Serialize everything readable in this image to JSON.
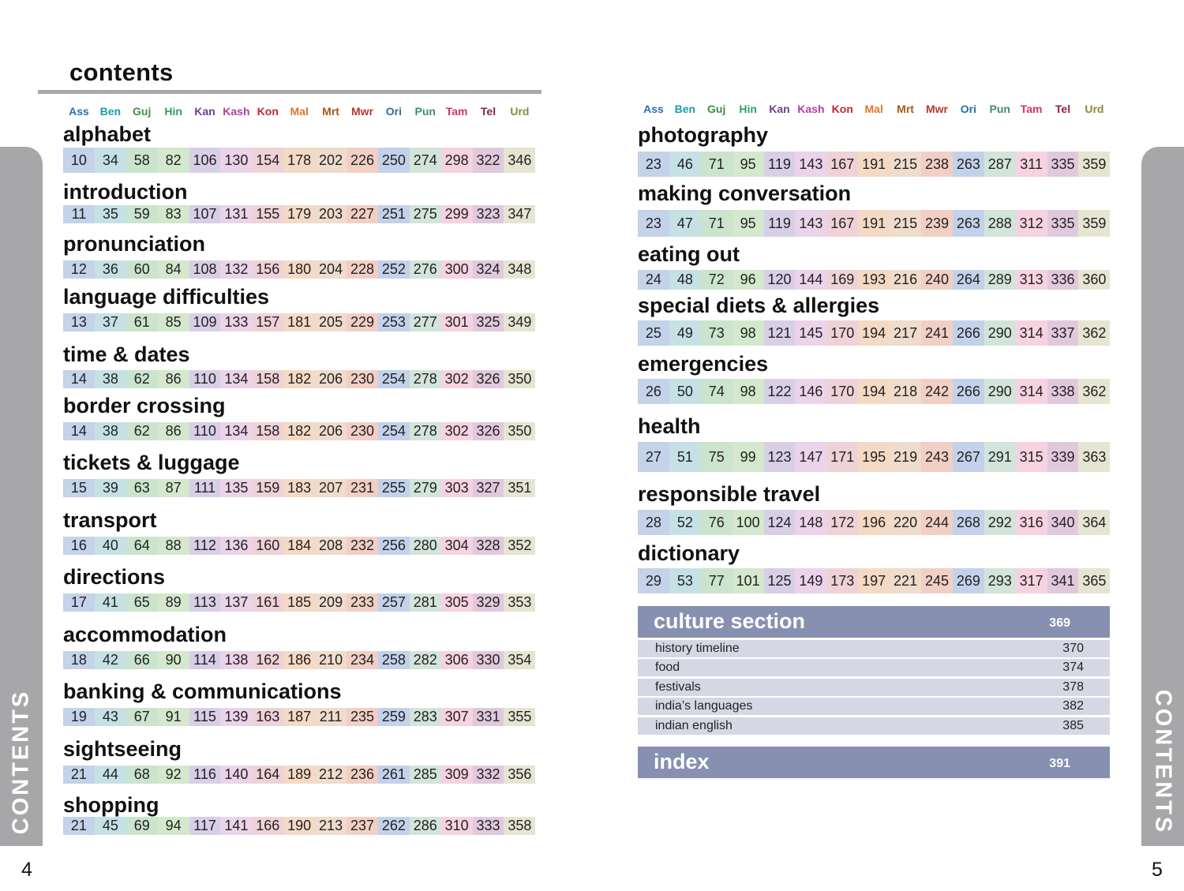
{
  "title": "contents",
  "side_label": "CONTENTS",
  "page_left": "4",
  "page_right": "5",
  "languages": [
    {
      "abbr": "Ass",
      "color": "#2c6fb4"
    },
    {
      "abbr": "Ben",
      "color": "#1a9fa5"
    },
    {
      "abbr": "Guj",
      "color": "#3e8f3e"
    },
    {
      "abbr": "Hin",
      "color": "#2aa15b"
    },
    {
      "abbr": "Kan",
      "color": "#6e3e8f"
    },
    {
      "abbr": "Kash",
      "color": "#b23fa6"
    },
    {
      "abbr": "Kon",
      "color": "#c0262f"
    },
    {
      "abbr": "Mal",
      "color": "#e0772b"
    },
    {
      "abbr": "Mrt",
      "color": "#a25a1c"
    },
    {
      "abbr": "Mwr",
      "color": "#b33a2c"
    },
    {
      "abbr": "Ori",
      "color": "#2a6fa5"
    },
    {
      "abbr": "Pun",
      "color": "#3e8f6e"
    },
    {
      "abbr": "Tam",
      "color": "#d6306f"
    },
    {
      "abbr": "Tel",
      "color": "#8d1f4e"
    },
    {
      "abbr": "Urd",
      "color": "#8a8a3e"
    }
  ],
  "cell_colors": [
    "#c4d2ea",
    "#c6e1e5",
    "#cbe4cd",
    "#d4e8cd",
    "#d8cfe7",
    "#ebd3ea",
    "#efd2d7",
    "#f4dac5",
    "#efdccd",
    "#f2cfc4",
    "#c3d2ea",
    "#d3e4db",
    "#f7d2e0",
    "#e1c9dd",
    "#e6e5d2"
  ],
  "left_sections": [
    {
      "title": "alphabet",
      "pages": [
        "10",
        "34",
        "58",
        "82",
        "106",
        "130",
        "154",
        "178",
        "202",
        "226",
        "250",
        "274",
        "298",
        "322",
        "346"
      ]
    },
    {
      "title": "introduction",
      "pages": [
        "11",
        "35",
        "59",
        "83",
        "107",
        "131",
        "155",
        "179",
        "203",
        "227",
        "251",
        "275",
        "299",
        "323",
        "347"
      ]
    },
    {
      "title": "pronunciation",
      "pages": [
        "12",
        "36",
        "60",
        "84",
        "108",
        "132",
        "156",
        "180",
        "204",
        "228",
        "252",
        "276",
        "300",
        "324",
        "348"
      ]
    },
    {
      "title": "language difficulties",
      "pages": [
        "13",
        "37",
        "61",
        "85",
        "109",
        "133",
        "157",
        "181",
        "205",
        "229",
        "253",
        "277",
        "301",
        "325",
        "349"
      ]
    },
    {
      "title": "time & dates",
      "pages": [
        "14",
        "38",
        "62",
        "86",
        "110",
        "134",
        "158",
        "182",
        "206",
        "230",
        "254",
        "278",
        "302",
        "326",
        "350"
      ]
    },
    {
      "title": "border crossing",
      "pages": [
        "14",
        "38",
        "62",
        "86",
        "110",
        "134",
        "158",
        "182",
        "206",
        "230",
        "254",
        "278",
        "302",
        "326",
        "350"
      ]
    },
    {
      "title": "tickets & luggage",
      "pages": [
        "15",
        "39",
        "63",
        "87",
        "111",
        "135",
        "159",
        "183",
        "207",
        "231",
        "255",
        "279",
        "303",
        "327",
        "351"
      ]
    },
    {
      "title": "transport",
      "pages": [
        "16",
        "40",
        "64",
        "88",
        "112",
        "136",
        "160",
        "184",
        "208",
        "232",
        "256",
        "280",
        "304",
        "328",
        "352"
      ]
    },
    {
      "title": "directions",
      "pages": [
        "17",
        "41",
        "65",
        "89",
        "113",
        "137",
        "161",
        "185",
        "209",
        "233",
        "257",
        "281",
        "305",
        "329",
        "353"
      ]
    },
    {
      "title": "accommodation",
      "pages": [
        "18",
        "42",
        "66",
        "90",
        "114",
        "138",
        "162",
        "186",
        "210",
        "234",
        "258",
        "282",
        "306",
        "330",
        "354"
      ]
    },
    {
      "title": "banking & communications",
      "pages": [
        "19",
        "43",
        "67",
        "91",
        "115",
        "139",
        "163",
        "187",
        "211",
        "235",
        "259",
        "283",
        "307",
        "331",
        "355"
      ]
    },
    {
      "title": "sightseeing",
      "pages": [
        "21",
        "44",
        "68",
        "92",
        "116",
        "140",
        "164",
        "189",
        "212",
        "236",
        "261",
        "285",
        "309",
        "332",
        "356"
      ]
    },
    {
      "title": "shopping",
      "pages": [
        "21",
        "45",
        "69",
        "94",
        "117",
        "141",
        "166",
        "190",
        "213",
        "237",
        "262",
        "286",
        "310",
        "333",
        "358"
      ]
    }
  ],
  "right_sections": [
    {
      "title": "photography",
      "pages": [
        "23",
        "46",
        "71",
        "95",
        "119",
        "143",
        "167",
        "191",
        "215",
        "238",
        "263",
        "287",
        "311",
        "335",
        "359"
      ]
    },
    {
      "title": "making conversation",
      "pages": [
        "23",
        "47",
        "71",
        "95",
        "119",
        "143",
        "167",
        "191",
        "215",
        "239",
        "263",
        "288",
        "312",
        "335",
        "359"
      ]
    },
    {
      "title": "eating out",
      "pages": [
        "24",
        "48",
        "72",
        "96",
        "120",
        "144",
        "169",
        "193",
        "216",
        "240",
        "264",
        "289",
        "313",
        "336",
        "360"
      ]
    },
    {
      "title": "special diets & allergies",
      "pages": [
        "25",
        "49",
        "73",
        "98",
        "121",
        "145",
        "170",
        "194",
        "217",
        "241",
        "266",
        "290",
        "314",
        "337",
        "362"
      ]
    },
    {
      "title": "emergencies",
      "pages": [
        "26",
        "50",
        "74",
        "98",
        "122",
        "146",
        "170",
        "194",
        "218",
        "242",
        "266",
        "290",
        "314",
        "338",
        "362"
      ]
    },
    {
      "title": "health",
      "pages": [
        "27",
        "51",
        "75",
        "99",
        "123",
        "147",
        "171",
        "195",
        "219",
        "243",
        "267",
        "291",
        "315",
        "339",
        "363"
      ]
    },
    {
      "title": "responsible travel",
      "pages": [
        "28",
        "52",
        "76",
        "100",
        "124",
        "148",
        "172",
        "196",
        "220",
        "244",
        "268",
        "292",
        "316",
        "340",
        "364"
      ]
    },
    {
      "title": "dictionary",
      "pages": [
        "29",
        "53",
        "77",
        "101",
        "125",
        "149",
        "173",
        "197",
        "221",
        "245",
        "269",
        "293",
        "317",
        "341",
        "365"
      ]
    }
  ],
  "culture": {
    "title": "culture section",
    "page": "369",
    "items": [
      {
        "label": "history timeline",
        "page": "370"
      },
      {
        "label": "food",
        "page": "374"
      },
      {
        "label": "festivals",
        "page": "378"
      },
      {
        "label": "india’s languages",
        "page": "382"
      },
      {
        "label": "indian english",
        "page": "385"
      }
    ]
  },
  "index": {
    "title": "index",
    "page": "391"
  }
}
